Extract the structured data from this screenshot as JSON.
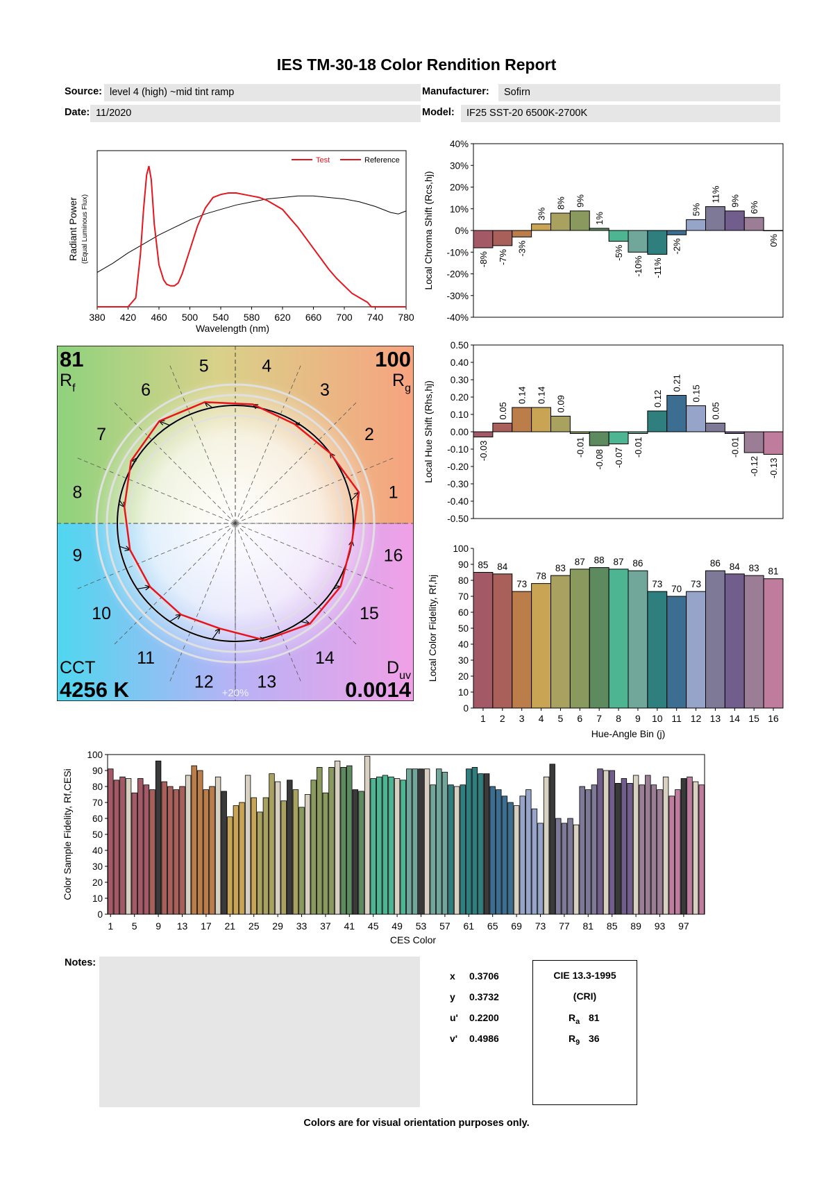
{
  "header": {
    "title": "IES TM-30-18 Color Rendition Report",
    "source_label": "Source:",
    "source_value": "level 4 (high) ~mid tint ramp",
    "manufacturer_label": "Manufacturer:",
    "manufacturer_value": "Sofirn",
    "date_label": "Date:",
    "date_value": "11/2020",
    "model_label": "Model:",
    "model_value": "IF25 SST-20 6500K-2700K"
  },
  "colors": {
    "test": "#e8141c",
    "reference": "#000000",
    "bins": [
      "#a45a66",
      "#a9605a",
      "#bb7d49",
      "#c9a455",
      "#a9a160",
      "#8a9a5f",
      "#5e8a60",
      "#4eb593",
      "#71a79a",
      "#2f7f7f",
      "#3b6e90",
      "#95a4c8",
      "#7d7996",
      "#725e8c",
      "#9b7d95",
      "#c07c9c"
    ]
  },
  "chart_data": [
    {
      "type": "line",
      "id": "spectrum",
      "xlabel": "Wavelength (nm)",
      "ylabel": "Radiant Power",
      "ylabel_sub": "(Equal Luminous Flux)",
      "xlim": [
        380,
        780
      ],
      "xticks": [
        "380",
        "420",
        "460",
        "500",
        "540",
        "580",
        "620",
        "660",
        "700",
        "740",
        "780"
      ],
      "legend": [
        "Test",
        "Reference"
      ],
      "legend_position": "top-right",
      "series": [
        {
          "name": "Test",
          "x": [
            380,
            420,
            430,
            436,
            440,
            444,
            447,
            450,
            454,
            460,
            466,
            470,
            475,
            480,
            485,
            490,
            500,
            510,
            520,
            530,
            540,
            550,
            560,
            570,
            580,
            590,
            600,
            610,
            620,
            630,
            640,
            650,
            660,
            670,
            680,
            690,
            700,
            710,
            720,
            730,
            735,
            740,
            780
          ],
          "y": [
            0,
            0,
            0.06,
            0.35,
            0.65,
            0.88,
            0.94,
            0.85,
            0.55,
            0.28,
            0.18,
            0.15,
            0.14,
            0.14,
            0.16,
            0.22,
            0.38,
            0.54,
            0.66,
            0.73,
            0.75,
            0.76,
            0.76,
            0.75,
            0.74,
            0.73,
            0.71,
            0.68,
            0.65,
            0.59,
            0.53,
            0.46,
            0.39,
            0.32,
            0.25,
            0.19,
            0.14,
            0.09,
            0.06,
            0.03,
            0.0,
            0,
            0
          ]
        },
        {
          "name": "Reference",
          "x": [
            380,
            400,
            420,
            440,
            460,
            480,
            500,
            520,
            540,
            560,
            580,
            600,
            620,
            640,
            660,
            680,
            700,
            720,
            740,
            760,
            770,
            780
          ],
          "y": [
            0.23,
            0.29,
            0.36,
            0.42,
            0.48,
            0.53,
            0.58,
            0.62,
            0.65,
            0.68,
            0.7,
            0.72,
            0.73,
            0.74,
            0.74,
            0.73,
            0.72,
            0.7,
            0.67,
            0.63,
            0.62,
            0.64
          ]
        }
      ]
    },
    {
      "type": "bar",
      "id": "chroma-shift",
      "ylabel": "Local Chroma Shift (Rcs,hj)",
      "ylim": [
        -40,
        40
      ],
      "yticks": [
        "40%",
        "30%",
        "20%",
        "10%",
        "0%",
        "-10%",
        "-20%",
        "-30%",
        "-40%"
      ],
      "values": [
        -8,
        -7,
        -3,
        3,
        8,
        9,
        1,
        -5,
        -10,
        -11,
        -2,
        5,
        11,
        9,
        6,
        0
      ],
      "labels": [
        "-8%",
        "-7%",
        "-3%",
        "3%",
        "8%",
        "9%",
        "1%",
        "-5%",
        "-10%",
        "-11%",
        "-2%",
        "5%",
        "11%",
        "9%",
        "6%",
        "0%"
      ]
    },
    {
      "type": "bar",
      "id": "hue-shift",
      "ylabel": "Local Hue Shift (Rhs,hj)",
      "ylim": [
        -0.5,
        0.5
      ],
      "yticks": [
        "0.50",
        "0.40",
        "0.30",
        "0.20",
        "0.10",
        "0.00",
        "-0.10",
        "-0.20",
        "-0.30",
        "-0.40",
        "-0.50"
      ],
      "values": [
        -0.03,
        0.05,
        0.14,
        0.14,
        0.09,
        -0.01,
        -0.08,
        -0.07,
        -0.01,
        0.12,
        0.21,
        0.15,
        0.05,
        -0.01,
        -0.12,
        -0.13
      ],
      "labels": [
        "-0.03",
        "0.05",
        "0.14",
        "0.14",
        "0.09",
        "-0.01",
        "-0.08",
        "-0.07",
        "-0.01",
        "0.12",
        "0.21",
        "0.15",
        "0.05",
        "-0.01",
        "-0.12",
        "-0.13"
      ]
    },
    {
      "type": "bar",
      "id": "local-fidelity",
      "ylabel": "Local Color Fidelity, Rf,hj",
      "xlabel": "Hue-Angle Bin (j)",
      "ylim": [
        0,
        100
      ],
      "yticks": [
        "100",
        "90",
        "80",
        "70",
        "60",
        "50",
        "40",
        "30",
        "20",
        "10",
        "0"
      ],
      "categories": [
        "1",
        "2",
        "3",
        "4",
        "5",
        "6",
        "7",
        "8",
        "9",
        "10",
        "11",
        "12",
        "13",
        "14",
        "15",
        "16"
      ],
      "values": [
        85,
        84,
        73,
        78,
        83,
        87,
        88,
        87,
        86,
        73,
        70,
        73,
        86,
        84,
        83,
        81
      ]
    },
    {
      "type": "bar",
      "id": "sample-fidelity",
      "ylabel": "Color Sample Fidelity, Rf,CESi",
      "xlabel": "CES Color",
      "ylim": [
        0,
        100
      ],
      "yticks": [
        "100",
        "90",
        "80",
        "70",
        "60",
        "50",
        "40",
        "30",
        "20",
        "10",
        "0"
      ],
      "xticks": [
        "1",
        "5",
        "9",
        "13",
        "17",
        "21",
        "25",
        "29",
        "33",
        "37",
        "41",
        "45",
        "49",
        "53",
        "57",
        "61",
        "65",
        "69",
        "73",
        "77",
        "81",
        "85",
        "89",
        "93",
        "97"
      ],
      "values": [
        91,
        84,
        86,
        85,
        76,
        85,
        81,
        78,
        96,
        83,
        80,
        78,
        80,
        87,
        93,
        90,
        78,
        80,
        86,
        77,
        61,
        68,
        70,
        87,
        73,
        64,
        73,
        88,
        83,
        71,
        84,
        78,
        67,
        75,
        84,
        92,
        76,
        92,
        96,
        92,
        93,
        78,
        77,
        99,
        85,
        86,
        87,
        86,
        85,
        84,
        91,
        91,
        91,
        91,
        81,
        91,
        89,
        81,
        80,
        81,
        91,
        92,
        88,
        88,
        80,
        78,
        74,
        70,
        68,
        74,
        78,
        66,
        57,
        86,
        94,
        60,
        57,
        60,
        56,
        80,
        78,
        81,
        91,
        90,
        90,
        82,
        85,
        82,
        87,
        81,
        87,
        81,
        78,
        86,
        74,
        78,
        85,
        86,
        83,
        81
      ]
    }
  ],
  "vector_graphic": {
    "rf_value": "81",
    "rf_label": "R",
    "rf_sub": "f",
    "rg_value": "100",
    "rg_label": "R",
    "rg_sub": "g",
    "cct_label": "CCT",
    "cct_value": "4256 K",
    "duv_label": "D",
    "duv_sub": "uv",
    "duv_value": "0.0014",
    "ring_label": "+20%",
    "bin_numbers": [
      "1",
      "2",
      "3",
      "4",
      "5",
      "6",
      "7",
      "8",
      "9",
      "10",
      "11",
      "12",
      "13",
      "14",
      "15",
      "16"
    ],
    "test_radii": [
      1.08,
      1.0,
      0.98,
      1.02,
      1.06,
      1.08,
      1.03,
      0.95,
      0.92,
      0.9,
      0.9,
      0.9,
      1.02,
      1.06,
      1.04,
      1.0
    ]
  },
  "footer": {
    "notes_label": "Notes:",
    "x_label": "x",
    "x_value": "0.3706",
    "y_label": "y",
    "y_value": "0.3732",
    "u_label": "u'",
    "u_value": "0.2200",
    "v_label": "v'",
    "v_value": "0.4986",
    "cri_title": "CIE 13.3-1995",
    "cri_sub": "(CRI)",
    "ra_label": "R",
    "ra_sub": "a",
    "ra_value": "81",
    "r9_label": "R",
    "r9_sub": "9",
    "r9_value": "36",
    "disclaimer": "Colors are for visual orientation purposes only."
  }
}
